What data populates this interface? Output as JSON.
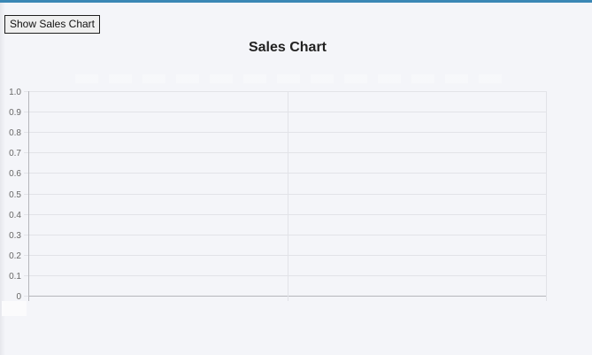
{
  "toolbar": {
    "show_chart_label": "Show Sales Chart"
  },
  "chart_data": {
    "type": "bar",
    "title": "Sales Chart",
    "categories": [],
    "series": [],
    "xlabel": "",
    "ylabel": "",
    "ylim": [
      0,
      1.0
    ],
    "y_ticks": [
      "0",
      "0.1",
      "0.2",
      "0.3",
      "0.4",
      "0.5",
      "0.6",
      "0.7",
      "0.8",
      "0.9",
      "1.0"
    ],
    "grid": true,
    "legend": "top",
    "colors": {
      "grid": "#e2e3e8",
      "axis": "#b5b6bb",
      "tick_text": "#666666",
      "accent_bar": "#3a87b5"
    }
  }
}
